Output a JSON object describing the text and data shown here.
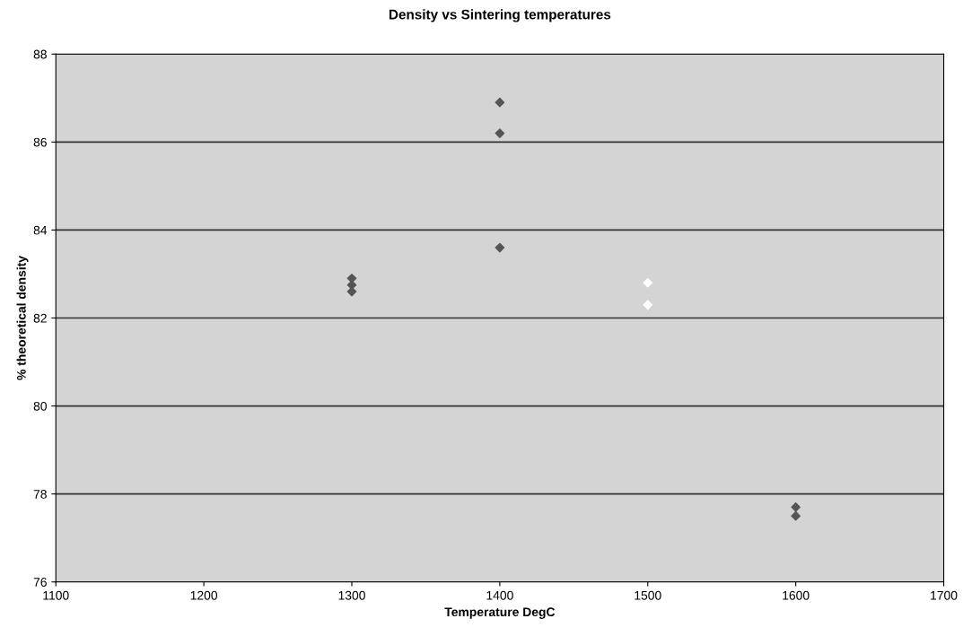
{
  "chart_data": {
    "type": "scatter",
    "title": "Density vs Sintering temperatures",
    "xlabel": "Temperature DegC",
    "ylabel": "% theoretical density",
    "series": [
      {
        "color": "#555555",
        "x": [
          1300,
          1300,
          1300,
          1400,
          1400,
          1400,
          1600,
          1600
        ],
        "values": [
          82.9,
          82.75,
          82.6,
          86.9,
          86.2,
          83.6,
          77.7,
          77.5
        ]
      },
      {
        "color": "#ffffff",
        "x": [
          1500,
          1500
        ],
        "values": [
          82.8,
          82.3
        ]
      }
    ],
    "xlim": [
      1100,
      1700
    ],
    "xticks": [
      1100,
      1200,
      1300,
      1400,
      1500,
      1600,
      1700
    ],
    "ylim": [
      76,
      88
    ],
    "yticks": [
      76,
      78,
      80,
      82,
      84,
      86,
      88
    ],
    "grid": "y",
    "marker": "diamond"
  }
}
